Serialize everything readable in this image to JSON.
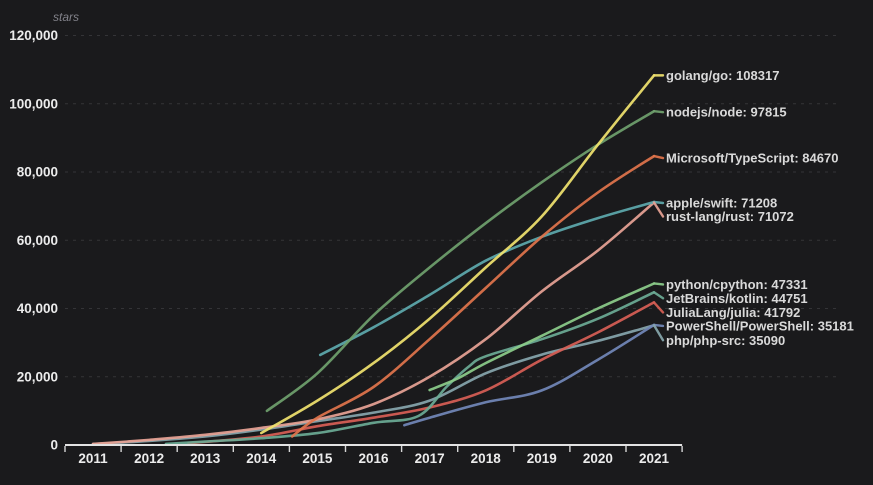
{
  "chart_data": {
    "type": "line",
    "title": "",
    "ylabel": "stars",
    "xlabel": "",
    "grid": "dashed-horizontal",
    "legend_position": "right-end-labels",
    "x_axis": {
      "tick_labels": [
        "2011",
        "2012",
        "2013",
        "2014",
        "2015",
        "2016",
        "2017",
        "2018",
        "2019",
        "2020",
        "2021"
      ],
      "range": [
        2011,
        2021
      ]
    },
    "y_axis": {
      "tick_labels": [
        "0",
        "20,000",
        "40,000",
        "60,000",
        "80,000",
        "100,000",
        "120,000"
      ],
      "tick_values": [
        0,
        20000,
        40000,
        60000,
        80000,
        100000,
        120000
      ],
      "range": [
        0,
        120000
      ]
    },
    "series": [
      {
        "name": "golang/go",
        "final_value": 108317,
        "label": "golang/go: 108317",
        "color": "#f0e26e",
        "points": [
          [
            2014,
            3500
          ],
          [
            2015,
            13000
          ],
          [
            2016,
            24000
          ],
          [
            2017,
            37000
          ],
          [
            2018,
            52000
          ],
          [
            2019,
            67000
          ],
          [
            2020,
            88000
          ],
          [
            2021,
            108317
          ]
        ]
      },
      {
        "name": "nodejs/node",
        "final_value": 97815,
        "label": "nodejs/node: 97815",
        "color": "#6fa06d",
        "points": [
          [
            2014.1,
            10000
          ],
          [
            2015,
            21000
          ],
          [
            2016,
            38000
          ],
          [
            2017,
            52000
          ],
          [
            2018,
            65000
          ],
          [
            2019,
            77000
          ],
          [
            2020,
            88000
          ],
          [
            2021,
            97815
          ]
        ]
      },
      {
        "name": "Microsoft/TypeScript",
        "final_value": 84670,
        "label": "Microsoft/TypeScript: 84670",
        "color": "#e0744b",
        "points": [
          [
            2014.55,
            2500
          ],
          [
            2015,
            8000
          ],
          [
            2016,
            17000
          ],
          [
            2017,
            31000
          ],
          [
            2018,
            46000
          ],
          [
            2019,
            61000
          ],
          [
            2020,
            74000
          ],
          [
            2021,
            84670
          ]
        ]
      },
      {
        "name": "apple/swift",
        "final_value": 71208,
        "label": "apple/swift: 71208",
        "color": "#5ea9ac",
        "points": [
          [
            2015.05,
            26400
          ],
          [
            2016,
            34500
          ],
          [
            2017,
            44000
          ],
          [
            2018,
            54000
          ],
          [
            2019,
            61000
          ],
          [
            2020,
            66500
          ],
          [
            2021,
            71208
          ]
        ]
      },
      {
        "name": "rust-lang/rust",
        "final_value": 71072,
        "label": "rust-lang/rust: 71072",
        "color": "#e7a294",
        "points": [
          [
            2011,
            300
          ],
          [
            2012,
            1500
          ],
          [
            2013,
            3000
          ],
          [
            2014,
            5000
          ],
          [
            2015,
            7500
          ],
          [
            2016,
            12000
          ],
          [
            2017,
            20000
          ],
          [
            2018,
            31000
          ],
          [
            2019,
            45000
          ],
          [
            2020,
            57000
          ],
          [
            2021,
            71072
          ]
        ]
      },
      {
        "name": "python/cpython",
        "final_value": 47331,
        "label": "python/cpython: 47331",
        "color": "#8ccc8a",
        "points": [
          [
            2017,
            16100
          ],
          [
            2017.5,
            19500
          ],
          [
            2018,
            24000
          ],
          [
            2019,
            32000
          ],
          [
            2020,
            40000
          ],
          [
            2021,
            47331
          ]
        ]
      },
      {
        "name": "JetBrains/kotlin",
        "final_value": 44751,
        "label": "JetBrains/kotlin: 44751",
        "color": "#6cab95",
        "points": [
          [
            2012.3,
            300
          ],
          [
            2013,
            1000
          ],
          [
            2014,
            2000
          ],
          [
            2015,
            3500
          ],
          [
            2016,
            6500
          ],
          [
            2016.8,
            8500
          ],
          [
            2017.3,
            17000
          ],
          [
            2017.7,
            23000
          ],
          [
            2018,
            26000
          ],
          [
            2019,
            31000
          ],
          [
            2020,
            37000
          ],
          [
            2021,
            44751
          ]
        ]
      },
      {
        "name": "JuliaLang/julia",
        "final_value": 41792,
        "label": "JuliaLang/julia: 41792",
        "color": "#d75f55",
        "points": [
          [
            2012.7,
            500
          ],
          [
            2014,
            2500
          ],
          [
            2015,
            5500
          ],
          [
            2016,
            8000
          ],
          [
            2017,
            11000
          ],
          [
            2018,
            16000
          ],
          [
            2019,
            25000
          ],
          [
            2020,
            33000
          ],
          [
            2021,
            41792
          ]
        ]
      },
      {
        "name": "PowerShell/PowerShell",
        "final_value": 35181,
        "label": "PowerShell/PowerShell: 35181",
        "color": "#7288b8",
        "points": [
          [
            2016.55,
            5800
          ],
          [
            2017,
            8000
          ],
          [
            2018,
            12500
          ],
          [
            2019,
            16000
          ],
          [
            2020,
            25000
          ],
          [
            2021,
            35181
          ]
        ]
      },
      {
        "name": "php/php-src",
        "final_value": 35090,
        "label": "php/php-src: 35090",
        "color": "#86a6ac",
        "points": [
          [
            2011,
            300
          ],
          [
            2012,
            1200
          ],
          [
            2013,
            2500
          ],
          [
            2014,
            4500
          ],
          [
            2015,
            7000
          ],
          [
            2016,
            9500
          ],
          [
            2017,
            13000
          ],
          [
            2018,
            21000
          ],
          [
            2019,
            26500
          ],
          [
            2020,
            30500
          ],
          [
            2021,
            35090
          ]
        ]
      }
    ],
    "colors": {
      "background": "#1a1a1c",
      "grid": "#343437",
      "axis": "#e3e3e3",
      "tick_text": "#ececec",
      "label_text": "#d9d9d9",
      "y_title_text": "#82828a"
    }
  }
}
